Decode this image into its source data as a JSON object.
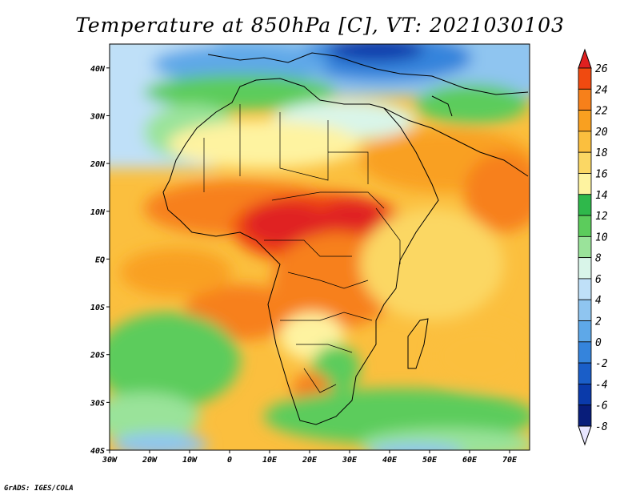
{
  "title": "Temperature at 850hPa [C], VT: 2021030103",
  "credit": "GrADS: IGES/COLA",
  "map": {
    "lon_range": [
      -30,
      75
    ],
    "lat_range": [
      -40,
      45
    ],
    "lon_ticks": [
      {
        "value": -30,
        "label": "30W"
      },
      {
        "value": -20,
        "label": "20W"
      },
      {
        "value": -10,
        "label": "10W"
      },
      {
        "value": 0,
        "label": "0"
      },
      {
        "value": 10,
        "label": "10E"
      },
      {
        "value": 20,
        "label": "20E"
      },
      {
        "value": 30,
        "label": "30E"
      },
      {
        "value": 40,
        "label": "40E"
      },
      {
        "value": 50,
        "label": "50E"
      },
      {
        "value": 60,
        "label": "60E"
      },
      {
        "value": 70,
        "label": "70E"
      }
    ],
    "lat_ticks": [
      {
        "value": 40,
        "label": "40N"
      },
      {
        "value": 30,
        "label": "30N"
      },
      {
        "value": 20,
        "label": "20N"
      },
      {
        "value": 10,
        "label": "10N"
      },
      {
        "value": 0,
        "label": "EQ"
      },
      {
        "value": -10,
        "label": "10S"
      },
      {
        "value": -20,
        "label": "20S"
      },
      {
        "value": -30,
        "label": "30S"
      },
      {
        "value": -40,
        "label": "40S"
      }
    ]
  },
  "colorbar": {
    "levels": [
      26,
      24,
      22,
      20,
      18,
      16,
      14,
      12,
      10,
      8,
      6,
      4,
      2,
      0,
      -2,
      -4,
      -6,
      -8
    ],
    "colors": [
      "#e02020",
      "#f04a10",
      "#f7801a",
      "#f9a020",
      "#fbbf3e",
      "#fbd764",
      "#fef3a0",
      "#2fb84b",
      "#5ccc5c",
      "#9ae39a",
      "#d9f5e9",
      "#bfe0f8",
      "#8fc5f0",
      "#5ea8e8",
      "#3584dc",
      "#1a5ec8",
      "#0a3aaa",
      "#081d7a",
      "#e8e6ff"
    ],
    "top_color": "#e02020",
    "bottom_color": "#e8e6ff"
  }
}
